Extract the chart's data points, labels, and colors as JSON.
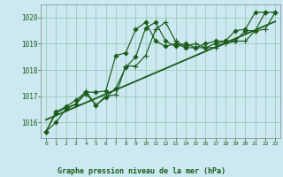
{
  "title": "Graphe pression niveau de la mer (hPa)",
  "bg_color": "#cce8f0",
  "grid_color": "#99ccbb",
  "line_color": "#1a5c1a",
  "ylim": [
    1015.4,
    1020.5
  ],
  "xlim": [
    -0.5,
    23.5
  ],
  "yticks": [
    1016,
    1017,
    1018,
    1019,
    1020
  ],
  "xticks": [
    0,
    1,
    2,
    3,
    4,
    5,
    6,
    7,
    8,
    9,
    10,
    11,
    12,
    13,
    14,
    15,
    16,
    17,
    18,
    19,
    20,
    21,
    22,
    23
  ],
  "series1_x": [
    0,
    1,
    2,
    3,
    4,
    5,
    6,
    7,
    8,
    9,
    10,
    11,
    12,
    13,
    14,
    15,
    16,
    17,
    18,
    19,
    20,
    21,
    22
  ],
  "series1_y": [
    1015.65,
    1016.0,
    1016.5,
    1016.7,
    1017.1,
    1016.65,
    1016.95,
    1017.3,
    1018.1,
    1018.5,
    1019.6,
    1019.82,
    1019.1,
    1018.9,
    1019.0,
    1018.85,
    1018.85,
    1019.0,
    1019.1,
    1019.1,
    1019.5,
    1019.5,
    1020.2
  ],
  "series2_x": [
    0,
    1,
    2,
    3,
    4,
    5,
    6,
    7,
    8,
    9,
    10,
    11,
    12,
    13,
    14,
    15,
    16,
    17,
    18,
    19,
    20,
    21,
    22,
    23
  ],
  "series2_y": [
    1015.65,
    1016.4,
    1016.6,
    1016.85,
    1017.15,
    1017.15,
    1017.2,
    1018.55,
    1018.65,
    1019.55,
    1019.82,
    1019.1,
    1018.9,
    1019.0,
    1018.85,
    1018.85,
    1019.0,
    1019.1,
    1019.1,
    1019.5,
    1019.55,
    1020.2,
    1020.2,
    1020.2
  ],
  "series3_x": [
    0,
    1,
    2,
    3,
    4,
    5,
    6,
    7,
    8,
    9,
    10,
    11,
    12,
    13,
    14,
    15,
    16,
    17,
    18,
    19,
    20,
    21,
    22,
    23
  ],
  "series3_y": [
    1015.65,
    1016.35,
    1016.55,
    1016.7,
    1017.2,
    1016.65,
    1017.0,
    1017.05,
    1018.15,
    1018.15,
    1018.55,
    1019.55,
    1019.82,
    1019.1,
    1018.9,
    1019.0,
    1018.85,
    1018.85,
    1019.0,
    1019.1,
    1019.1,
    1019.5,
    1019.55,
    1020.2
  ],
  "trend_x": [
    0,
    23
  ],
  "trend_y": [
    1016.1,
    1019.85
  ]
}
